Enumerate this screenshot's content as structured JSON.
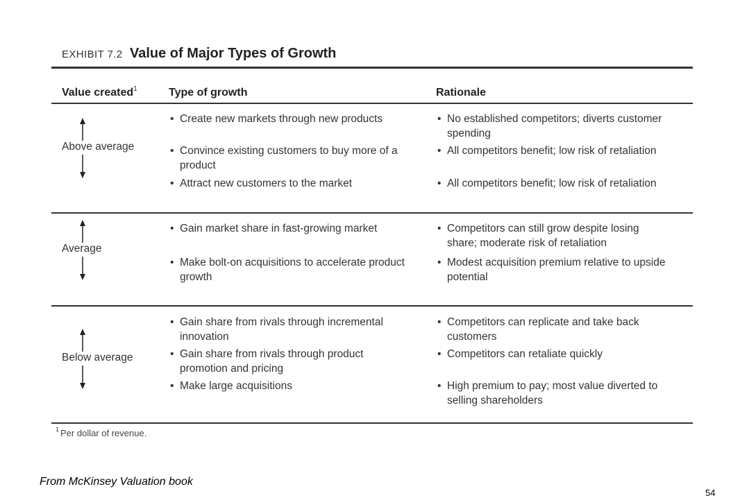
{
  "exhibit": {
    "label": "EXHIBIT 7.2",
    "title": "Value of Major Types of Growth"
  },
  "columns": {
    "value_created": "Value created",
    "value_created_note": "1",
    "type_of_growth": "Type of growth",
    "rationale": "Rationale"
  },
  "rows": [
    {
      "label": "Above average",
      "growth": [
        "Create new markets through new products",
        "Convince existing customers to buy more of a product",
        "Attract new customers to the market"
      ],
      "rationale": [
        "No established competitors; diverts customer spending",
        "All competitors benefit; low risk of retaliation",
        "All competitors benefit; low risk of retaliation"
      ]
    },
    {
      "label": "Average",
      "growth": [
        "Gain market share in fast-growing market",
        "Make bolt-on acquisitions to accelerate product growth"
      ],
      "rationale": [
        "Competitors can still grow despite losing share; moderate risk of retaliation",
        "Modest acquisition premium relative to upside potential"
      ]
    },
    {
      "label": "Below average",
      "growth": [
        "Gain share from rivals through incremental innovation",
        "Gain share from rivals through product promotion and pricing",
        "Make large acquisitions"
      ],
      "rationale": [
        "Competitors can replicate and take back customers",
        "Competitors can retaliate quickly",
        "High premium to pay; most value diverted to selling shareholders"
      ]
    }
  ],
  "footnote": {
    "marker": "1",
    "text": "Per dollar of revenue."
  },
  "source": "From McKinsey Valuation book",
  "page_number": "54",
  "bullet_char": "•"
}
